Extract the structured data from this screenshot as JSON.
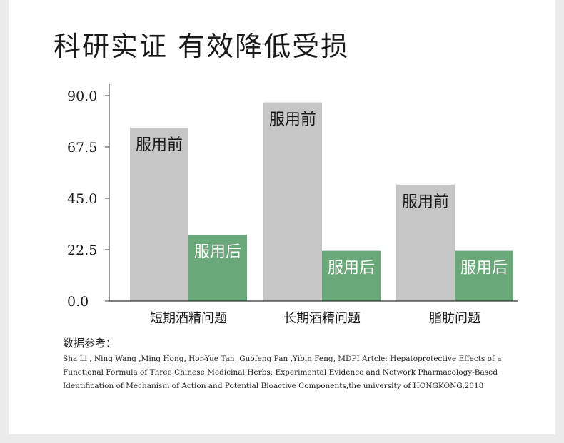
{
  "headline": "科研实证 有效降低受损",
  "chart_data": {
    "type": "bar",
    "categories": [
      "短期酒精问题",
      "长期酒精问题",
      "脂肪问题"
    ],
    "series": [
      {
        "name": "服用前",
        "values": [
          76,
          87,
          51
        ],
        "color": "#c6c6c6"
      },
      {
        "name": "服用后",
        "values": [
          29,
          22,
          22
        ],
        "color": "#6aa87a"
      }
    ],
    "yticks": [
      "90.0",
      "67.5",
      "45.0",
      "22.5",
      "0.0"
    ],
    "ylim": [
      0,
      90
    ],
    "grid": false,
    "legend": "none"
  },
  "source": {
    "title": "数据参考：",
    "text": "Sha Li  , Ning Wang ,Ming Hong, Hor-Yue Tan ,Guofeng Pan ,Yibin Feng, MDPI Artcle: Hepatoprotective Effects of a Functional Formula of Three Chinese Medicinal Herbs: Experimental Evidence and Network Pharmacology-Based Identification of Mechanism of Action and Potential Bioactive Components,the university of HONGKONG,2018"
  }
}
